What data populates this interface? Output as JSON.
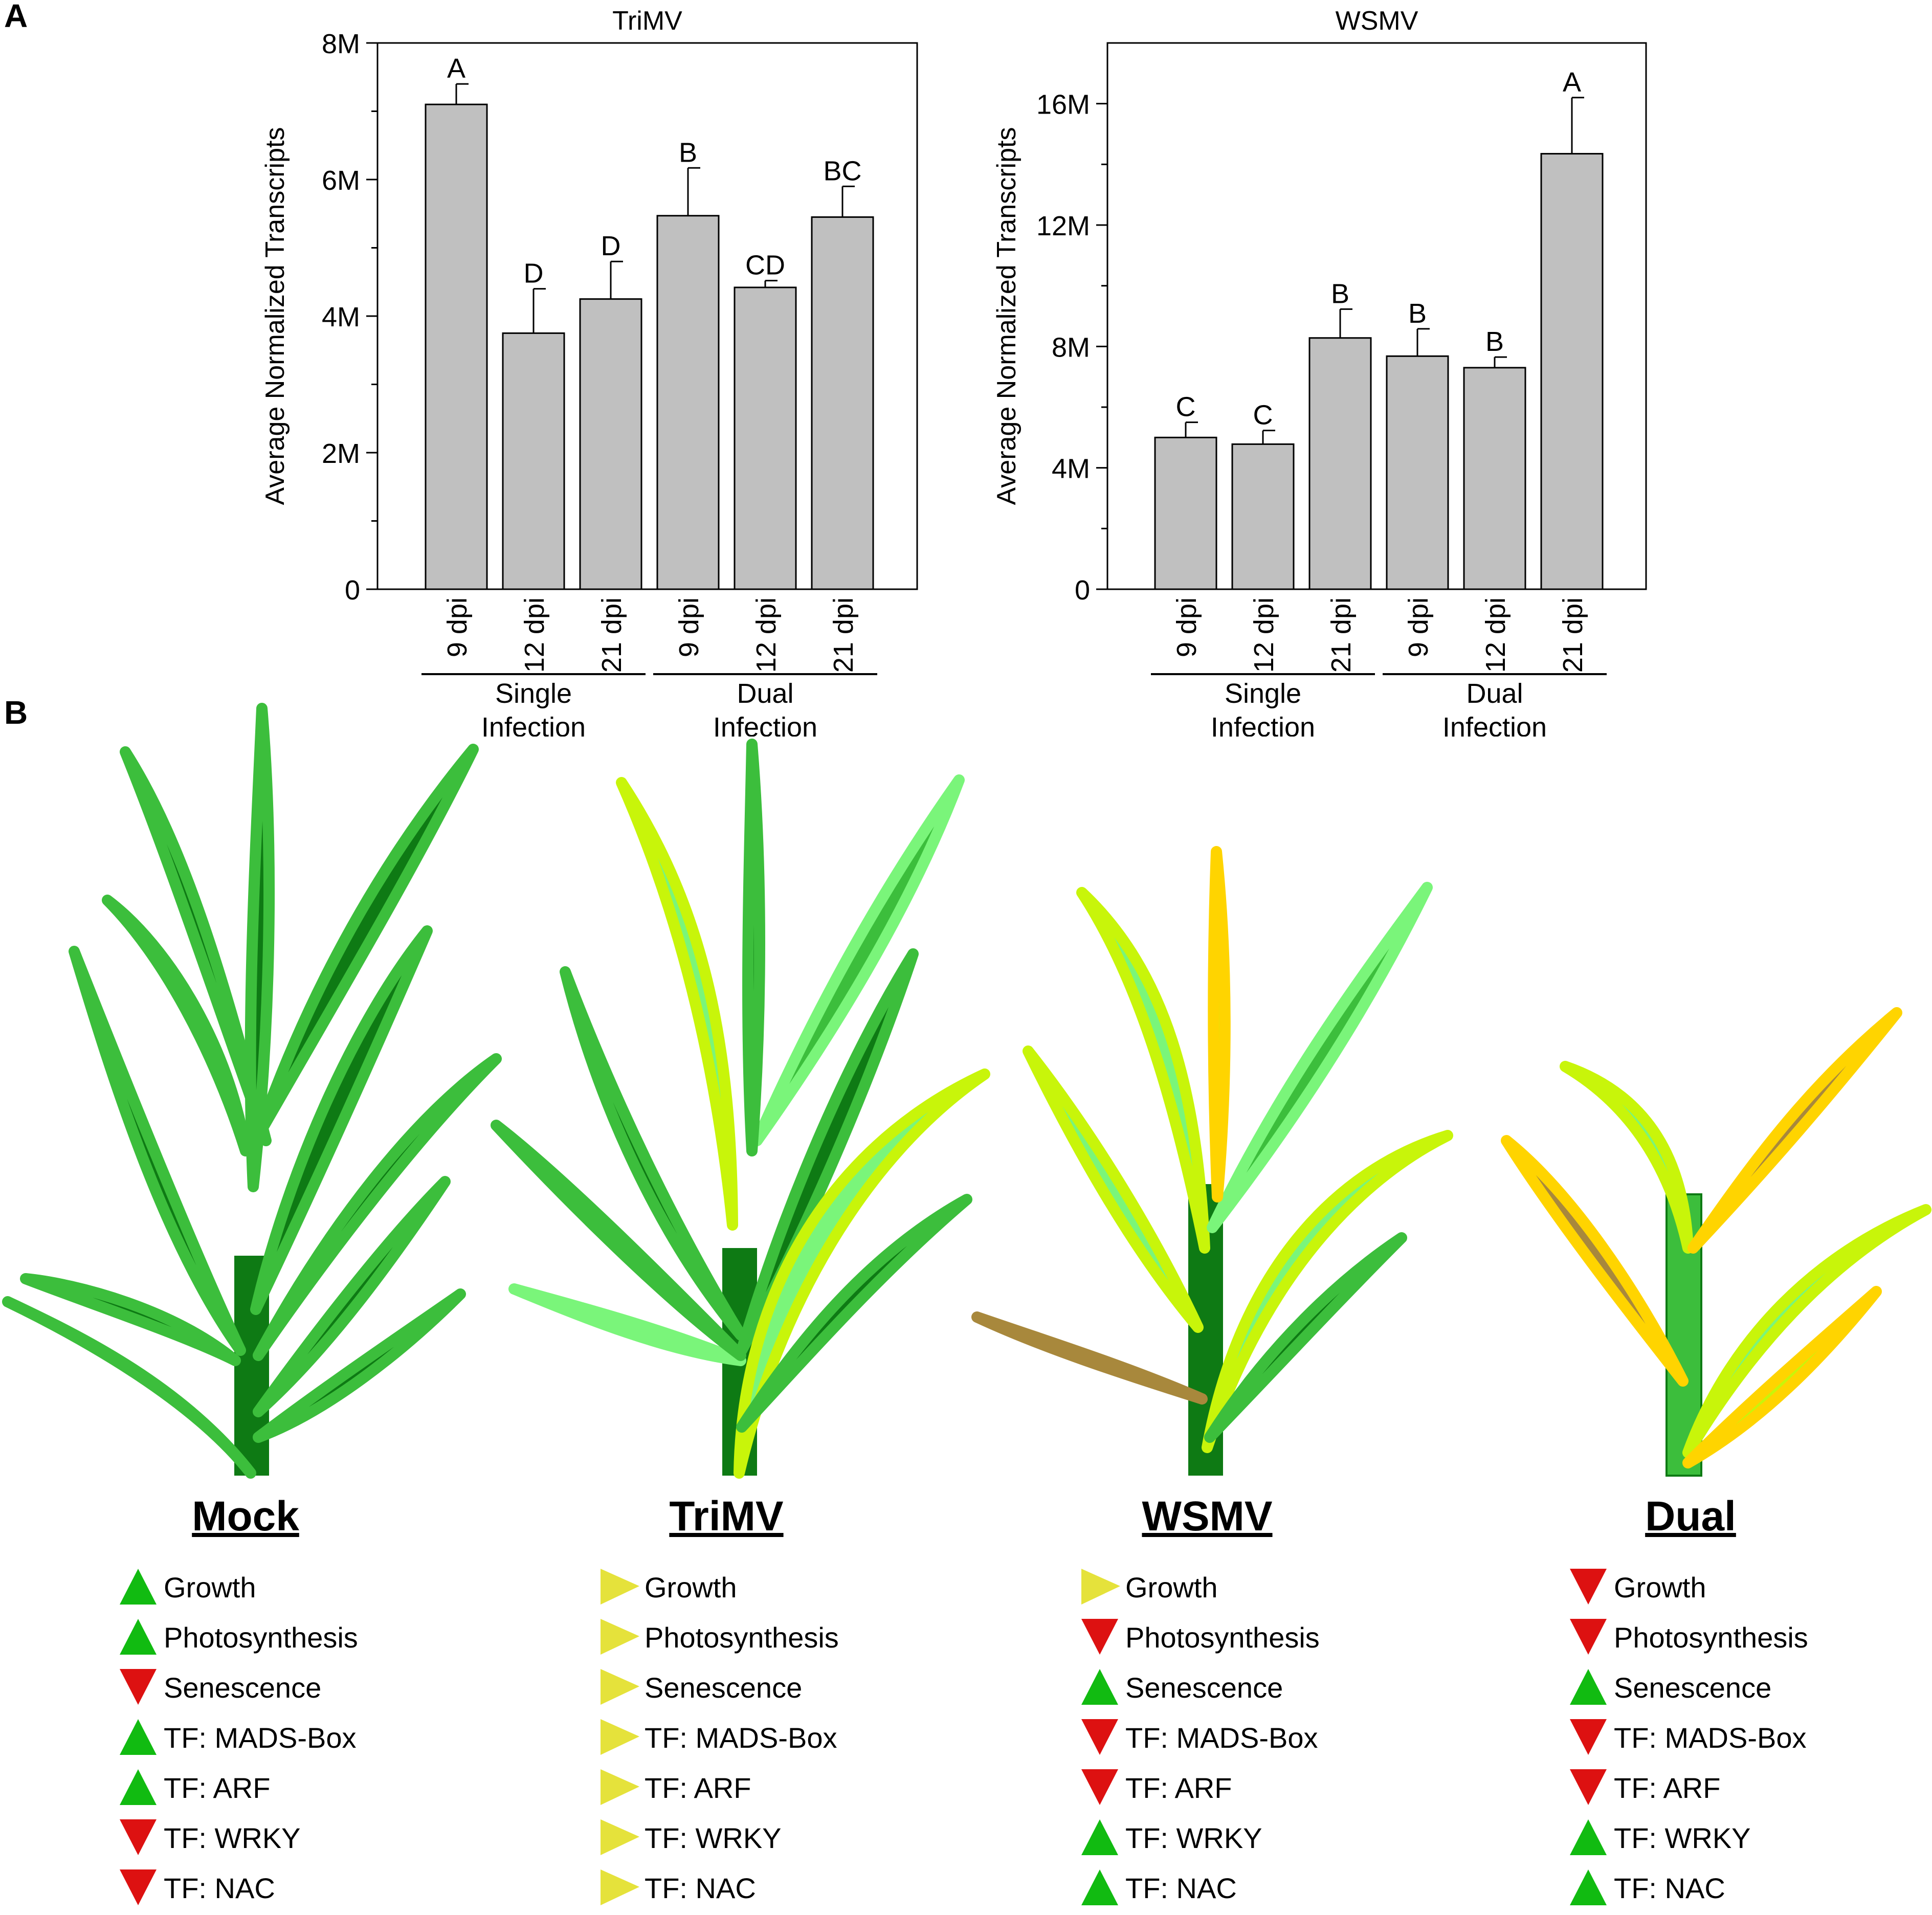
{
  "panels": {
    "a": "A",
    "b": "B"
  },
  "colors": {
    "bar_fill": "#c0c0c0",
    "up": "#11bb11",
    "down": "#dd1111",
    "neutral": "#e5e23b",
    "dark_green": "#0e7a14",
    "mid_green": "#3cbe3c",
    "light_green": "#7af57a",
    "yellow_green": "#c8f50a",
    "yellow": "#ffd400",
    "brown": "#a8883c"
  },
  "chart_data": [
    {
      "type": "bar",
      "title": "TriMV",
      "ylabel": "Average Normalized Transcripts",
      "xlabel": "",
      "ylim": [
        0,
        8000000
      ],
      "yticks": [
        0,
        2000000,
        4000000,
        6000000,
        8000000
      ],
      "yticklabels": [
        "0",
        "2M",
        "4M",
        "6M",
        "8M"
      ],
      "categories": [
        "9 dpi",
        "12 dpi",
        "21 dpi",
        "9 dpi",
        "12 dpi",
        "21 dpi"
      ],
      "values": [
        7100000,
        3750000,
        4250000,
        5470000,
        4420000,
        5450000
      ],
      "errors": [
        300000,
        650000,
        550000,
        700000,
        100000,
        450000
      ],
      "letters": [
        "A",
        "D",
        "D",
        "B",
        "CD",
        "BC"
      ],
      "groups": [
        {
          "line1": "Single",
          "line2": "Infection",
          "start": 0,
          "end": 2
        },
        {
          "line1": "Dual",
          "line2": "Infection",
          "start": 3,
          "end": 5
        }
      ]
    },
    {
      "type": "bar",
      "title": "WSMV",
      "ylabel": "Average Normalized Transcripts",
      "xlabel": "",
      "ylim": [
        0,
        18000000
      ],
      "yticks": [
        0,
        4000000,
        8000000,
        12000000,
        16000000
      ],
      "yticklabels": [
        "0",
        "4M",
        "8M",
        "12M",
        "16M"
      ],
      "categories": [
        "9 dpi",
        "12 dpi",
        "21 dpi",
        "9 dpi",
        "12 dpi",
        "21 dpi"
      ],
      "values": [
        5000000,
        4780000,
        8280000,
        7680000,
        7300000,
        14350000
      ],
      "errors": [
        500000,
        450000,
        950000,
        900000,
        350000,
        1850000
      ],
      "letters": [
        "C",
        "C",
        "B",
        "B",
        "B",
        "A"
      ],
      "groups": [
        {
          "line1": "Single",
          "line2": "Infection",
          "start": 0,
          "end": 2
        },
        {
          "line1": "Dual",
          "line2": "Infection",
          "start": 3,
          "end": 5
        }
      ]
    }
  ],
  "conditions": [
    {
      "name": "Mock",
      "items": [
        {
          "label": "Growth",
          "dir": "up"
        },
        {
          "label": "Photosynthesis",
          "dir": "up"
        },
        {
          "label": "Senescence",
          "dir": "down"
        },
        {
          "label": "TF: MADS-Box",
          "dir": "up"
        },
        {
          "label": "TF: ARF",
          "dir": "up"
        },
        {
          "label": "TF: WRKY",
          "dir": "down"
        },
        {
          "label": "TF: NAC",
          "dir": "down"
        }
      ]
    },
    {
      "name": "TriMV",
      "items": [
        {
          "label": "Growth",
          "dir": "neutral"
        },
        {
          "label": "Photosynthesis",
          "dir": "neutral"
        },
        {
          "label": "Senescence",
          "dir": "neutral"
        },
        {
          "label": "TF: MADS-Box",
          "dir": "neutral"
        },
        {
          "label": "TF: ARF",
          "dir": "neutral"
        },
        {
          "label": "TF: WRKY",
          "dir": "neutral"
        },
        {
          "label": "TF: NAC",
          "dir": "neutral"
        }
      ]
    },
    {
      "name": "WSMV",
      "items": [
        {
          "label": "Growth",
          "dir": "neutral"
        },
        {
          "label": "Photosynthesis",
          "dir": "down"
        },
        {
          "label": "Senescence",
          "dir": "up"
        },
        {
          "label": "TF: MADS-Box",
          "dir": "down"
        },
        {
          "label": "TF: ARF",
          "dir": "down"
        },
        {
          "label": "TF: WRKY",
          "dir": "up"
        },
        {
          "label": "TF: NAC",
          "dir": "up"
        }
      ]
    },
    {
      "name": "Dual",
      "items": [
        {
          "label": "Growth",
          "dir": "down"
        },
        {
          "label": "Photosynthesis",
          "dir": "down"
        },
        {
          "label": "Senescence",
          "dir": "up"
        },
        {
          "label": "TF: MADS-Box",
          "dir": "down"
        },
        {
          "label": "TF: ARF",
          "dir": "down"
        },
        {
          "label": "TF: WRKY",
          "dir": "up"
        },
        {
          "label": "TF: NAC",
          "dir": "up"
        }
      ]
    }
  ]
}
